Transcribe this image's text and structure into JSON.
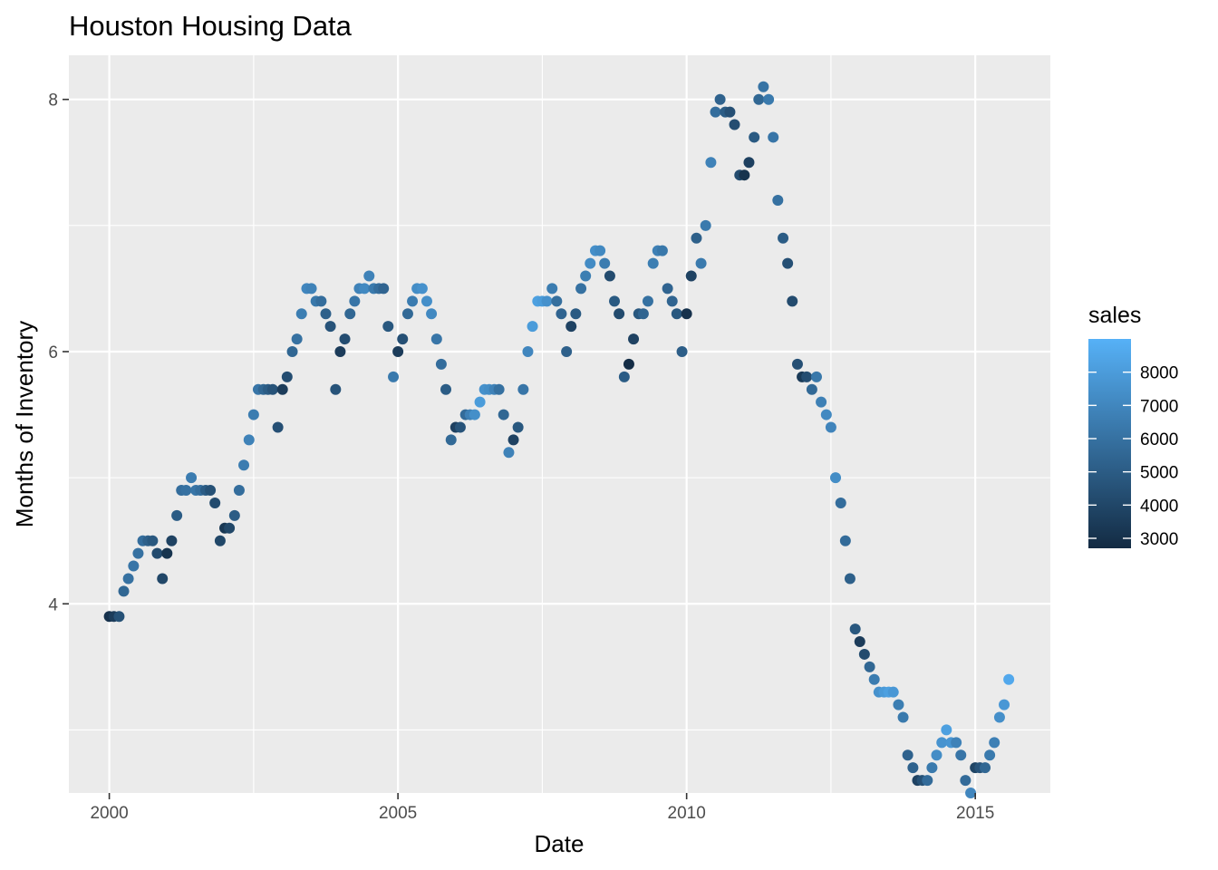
{
  "chart_data": {
    "type": "scatter",
    "title": "Houston Housing Data",
    "xlabel": "Date",
    "ylabel": "Months of Inventory",
    "xlim": [
      1999.3,
      2016.3
    ],
    "ylim": [
      2.5,
      8.35
    ],
    "x_ticks": [
      2000,
      2005,
      2010,
      2015
    ],
    "x_tick_labels": [
      "2000",
      "2005",
      "2010",
      "2015"
    ],
    "y_ticks": [
      4,
      6,
      8
    ],
    "y_tick_labels": [
      "4",
      "6",
      "8"
    ],
    "grid": true,
    "legend": {
      "title": "sales",
      "placement": "right",
      "range": [
        2700,
        9000
      ],
      "ticks": [
        3000,
        4000,
        5000,
        6000,
        7000,
        8000
      ],
      "tick_labels": [
        "3000",
        "4000",
        "5000",
        "6000",
        "7000",
        "8000"
      ],
      "color_low": "#132B43",
      "color_high": "#56B1F7"
    },
    "colors": {
      "panel": "#EBEBEB",
      "grid": "#FFFFFF",
      "low": "#132B43",
      "high": "#56B1F7"
    },
    "points": [
      {
        "x": 2000.0,
        "y": 3.9,
        "sales": 3000
      },
      {
        "x": 2000.08,
        "y": 3.9,
        "sales": 3500
      },
      {
        "x": 2000.17,
        "y": 3.9,
        "sales": 4500
      },
      {
        "x": 2000.25,
        "y": 4.1,
        "sales": 5500
      },
      {
        "x": 2000.33,
        "y": 4.2,
        "sales": 6000
      },
      {
        "x": 2000.42,
        "y": 4.3,
        "sales": 6200
      },
      {
        "x": 2000.5,
        "y": 4.4,
        "sales": 6000
      },
      {
        "x": 2000.58,
        "y": 4.5,
        "sales": 5800
      },
      {
        "x": 2000.67,
        "y": 4.5,
        "sales": 5200
      },
      {
        "x": 2000.75,
        "y": 4.5,
        "sales": 4800
      },
      {
        "x": 2000.83,
        "y": 4.4,
        "sales": 4200
      },
      {
        "x": 2000.92,
        "y": 4.2,
        "sales": 4000
      },
      {
        "x": 2001.0,
        "y": 4.4,
        "sales": 3100
      },
      {
        "x": 2001.08,
        "y": 4.5,
        "sales": 3800
      },
      {
        "x": 2001.17,
        "y": 4.7,
        "sales": 5000
      },
      {
        "x": 2001.25,
        "y": 4.9,
        "sales": 5800
      },
      {
        "x": 2001.33,
        "y": 4.9,
        "sales": 6000
      },
      {
        "x": 2001.42,
        "y": 5.0,
        "sales": 6500
      },
      {
        "x": 2001.5,
        "y": 4.9,
        "sales": 6200
      },
      {
        "x": 2001.58,
        "y": 4.9,
        "sales": 5800
      },
      {
        "x": 2001.67,
        "y": 4.9,
        "sales": 5000
      },
      {
        "x": 2001.75,
        "y": 4.9,
        "sales": 4500
      },
      {
        "x": 2001.83,
        "y": 4.8,
        "sales": 4200
      },
      {
        "x": 2001.92,
        "y": 4.5,
        "sales": 4000
      },
      {
        "x": 2002.0,
        "y": 4.6,
        "sales": 3300
      },
      {
        "x": 2002.08,
        "y": 4.6,
        "sales": 4000
      },
      {
        "x": 2002.17,
        "y": 4.7,
        "sales": 5000
      },
      {
        "x": 2002.25,
        "y": 4.9,
        "sales": 5800
      },
      {
        "x": 2002.33,
        "y": 5.1,
        "sales": 6500
      },
      {
        "x": 2002.42,
        "y": 5.3,
        "sales": 6800
      },
      {
        "x": 2002.5,
        "y": 5.5,
        "sales": 6500
      },
      {
        "x": 2002.58,
        "y": 5.7,
        "sales": 6200
      },
      {
        "x": 2002.67,
        "y": 5.7,
        "sales": 5500
      },
      {
        "x": 2002.75,
        "y": 5.7,
        "sales": 5000
      },
      {
        "x": 2002.83,
        "y": 5.7,
        "sales": 4600
      },
      {
        "x": 2002.92,
        "y": 5.4,
        "sales": 4400
      },
      {
        "x": 2003.0,
        "y": 5.7,
        "sales": 3500
      },
      {
        "x": 2003.08,
        "y": 5.8,
        "sales": 4300
      },
      {
        "x": 2003.17,
        "y": 6.0,
        "sales": 5500
      },
      {
        "x": 2003.25,
        "y": 6.1,
        "sales": 6000
      },
      {
        "x": 2003.33,
        "y": 6.3,
        "sales": 6600
      },
      {
        "x": 2003.42,
        "y": 6.5,
        "sales": 7000
      },
      {
        "x": 2003.5,
        "y": 6.5,
        "sales": 6800
      },
      {
        "x": 2003.58,
        "y": 6.4,
        "sales": 6300
      },
      {
        "x": 2003.67,
        "y": 6.4,
        "sales": 5800
      },
      {
        "x": 2003.75,
        "y": 6.3,
        "sales": 5200
      },
      {
        "x": 2003.83,
        "y": 6.2,
        "sales": 4600
      },
      {
        "x": 2003.92,
        "y": 5.7,
        "sales": 4600
      },
      {
        "x": 2004.0,
        "y": 6.0,
        "sales": 3500
      },
      {
        "x": 2004.08,
        "y": 6.1,
        "sales": 4300
      },
      {
        "x": 2004.17,
        "y": 6.3,
        "sales": 5500
      },
      {
        "x": 2004.25,
        "y": 6.4,
        "sales": 6200
      },
      {
        "x": 2004.33,
        "y": 6.5,
        "sales": 6800
      },
      {
        "x": 2004.42,
        "y": 6.5,
        "sales": 7100
      },
      {
        "x": 2004.5,
        "y": 6.6,
        "sales": 6800
      },
      {
        "x": 2004.58,
        "y": 6.5,
        "sales": 6400
      },
      {
        "x": 2004.67,
        "y": 6.5,
        "sales": 5800
      },
      {
        "x": 2004.75,
        "y": 6.5,
        "sales": 5400
      },
      {
        "x": 2004.83,
        "y": 6.2,
        "sales": 4800
      },
      {
        "x": 2004.92,
        "y": 5.8,
        "sales": 6400
      },
      {
        "x": 2005.0,
        "y": 6.0,
        "sales": 3500
      },
      {
        "x": 2005.08,
        "y": 6.1,
        "sales": 4400
      },
      {
        "x": 2005.17,
        "y": 6.3,
        "sales": 5600
      },
      {
        "x": 2005.25,
        "y": 6.4,
        "sales": 6500
      },
      {
        "x": 2005.33,
        "y": 6.5,
        "sales": 7300
      },
      {
        "x": 2005.42,
        "y": 6.5,
        "sales": 7500
      },
      {
        "x": 2005.5,
        "y": 6.4,
        "sales": 7400
      },
      {
        "x": 2005.58,
        "y": 6.3,
        "sales": 7100
      },
      {
        "x": 2005.67,
        "y": 6.1,
        "sales": 6200
      },
      {
        "x": 2005.75,
        "y": 5.9,
        "sales": 5800
      },
      {
        "x": 2005.83,
        "y": 5.7,
        "sales": 5000
      },
      {
        "x": 2005.92,
        "y": 5.3,
        "sales": 5600
      },
      {
        "x": 2006.0,
        "y": 5.4,
        "sales": 3700
      },
      {
        "x": 2006.08,
        "y": 5.4,
        "sales": 4600
      },
      {
        "x": 2006.17,
        "y": 5.5,
        "sales": 5700
      },
      {
        "x": 2006.25,
        "y": 5.5,
        "sales": 6700
      },
      {
        "x": 2006.33,
        "y": 5.5,
        "sales": 7400
      },
      {
        "x": 2006.42,
        "y": 5.6,
        "sales": 8000
      },
      {
        "x": 2006.5,
        "y": 5.7,
        "sales": 7500
      },
      {
        "x": 2006.58,
        "y": 5.7,
        "sales": 7300
      },
      {
        "x": 2006.67,
        "y": 5.7,
        "sales": 6800
      },
      {
        "x": 2006.75,
        "y": 5.7,
        "sales": 6000
      },
      {
        "x": 2006.83,
        "y": 5.5,
        "sales": 5500
      },
      {
        "x": 2006.92,
        "y": 5.2,
        "sales": 6800
      },
      {
        "x": 2007.0,
        "y": 5.3,
        "sales": 3800
      },
      {
        "x": 2007.08,
        "y": 5.4,
        "sales": 4800
      },
      {
        "x": 2007.17,
        "y": 5.7,
        "sales": 6200
      },
      {
        "x": 2007.25,
        "y": 6.0,
        "sales": 7000
      },
      {
        "x": 2007.33,
        "y": 6.2,
        "sales": 8000
      },
      {
        "x": 2007.42,
        "y": 6.4,
        "sales": 8200
      },
      {
        "x": 2007.5,
        "y": 6.4,
        "sales": 8000
      },
      {
        "x": 2007.58,
        "y": 6.4,
        "sales": 7500
      },
      {
        "x": 2007.67,
        "y": 6.5,
        "sales": 6500
      },
      {
        "x": 2007.75,
        "y": 6.4,
        "sales": 5900
      },
      {
        "x": 2007.83,
        "y": 6.3,
        "sales": 5400
      },
      {
        "x": 2007.92,
        "y": 6.0,
        "sales": 5200
      },
      {
        "x": 2008.0,
        "y": 6.2,
        "sales": 3800
      },
      {
        "x": 2008.08,
        "y": 6.3,
        "sales": 4900
      },
      {
        "x": 2008.17,
        "y": 6.5,
        "sales": 6000
      },
      {
        "x": 2008.25,
        "y": 6.6,
        "sales": 6600
      },
      {
        "x": 2008.33,
        "y": 6.7,
        "sales": 7200
      },
      {
        "x": 2008.42,
        "y": 6.8,
        "sales": 7400
      },
      {
        "x": 2008.5,
        "y": 6.8,
        "sales": 7100
      },
      {
        "x": 2008.58,
        "y": 6.7,
        "sales": 6500
      },
      {
        "x": 2008.67,
        "y": 6.6,
        "sales": 4200
      },
      {
        "x": 2008.75,
        "y": 6.4,
        "sales": 4900
      },
      {
        "x": 2008.83,
        "y": 6.3,
        "sales": 4200
      },
      {
        "x": 2008.92,
        "y": 5.8,
        "sales": 5000
      },
      {
        "x": 2009.0,
        "y": 5.9,
        "sales": 2800
      },
      {
        "x": 2009.08,
        "y": 6.1,
        "sales": 3800
      },
      {
        "x": 2009.17,
        "y": 6.3,
        "sales": 4800
      },
      {
        "x": 2009.25,
        "y": 6.3,
        "sales": 5400
      },
      {
        "x": 2009.33,
        "y": 6.4,
        "sales": 6000
      },
      {
        "x": 2009.42,
        "y": 6.7,
        "sales": 6600
      },
      {
        "x": 2009.5,
        "y": 6.8,
        "sales": 6700
      },
      {
        "x": 2009.58,
        "y": 6.8,
        "sales": 6300
      },
      {
        "x": 2009.67,
        "y": 6.5,
        "sales": 5400
      },
      {
        "x": 2009.75,
        "y": 6.4,
        "sales": 5400
      },
      {
        "x": 2009.83,
        "y": 6.3,
        "sales": 4800
      },
      {
        "x": 2009.92,
        "y": 6.0,
        "sales": 5100
      },
      {
        "x": 2010.0,
        "y": 6.3,
        "sales": 3000
      },
      {
        "x": 2010.08,
        "y": 6.6,
        "sales": 3800
      },
      {
        "x": 2010.17,
        "y": 6.9,
        "sales": 5200
      },
      {
        "x": 2010.25,
        "y": 6.7,
        "sales": 6400
      },
      {
        "x": 2010.33,
        "y": 7.0,
        "sales": 6400
      },
      {
        "x": 2010.42,
        "y": 7.5,
        "sales": 6800
      },
      {
        "x": 2010.5,
        "y": 7.9,
        "sales": 5800
      },
      {
        "x": 2010.58,
        "y": 8.0,
        "sales": 5300
      },
      {
        "x": 2010.67,
        "y": 7.9,
        "sales": 5000
      },
      {
        "x": 2010.75,
        "y": 7.9,
        "sales": 4400
      },
      {
        "x": 2010.83,
        "y": 7.8,
        "sales": 4300
      },
      {
        "x": 2010.92,
        "y": 7.4,
        "sales": 4200
      },
      {
        "x": 2011.0,
        "y": 7.4,
        "sales": 3100
      },
      {
        "x": 2011.08,
        "y": 7.5,
        "sales": 3700
      },
      {
        "x": 2011.17,
        "y": 7.7,
        "sales": 4900
      },
      {
        "x": 2011.25,
        "y": 8.0,
        "sales": 5500
      },
      {
        "x": 2011.33,
        "y": 8.1,
        "sales": 6100
      },
      {
        "x": 2011.42,
        "y": 8.0,
        "sales": 6400
      },
      {
        "x": 2011.5,
        "y": 7.7,
        "sales": 6200
      },
      {
        "x": 2011.58,
        "y": 7.2,
        "sales": 6000
      },
      {
        "x": 2011.67,
        "y": 6.9,
        "sales": 5000
      },
      {
        "x": 2011.75,
        "y": 6.7,
        "sales": 4400
      },
      {
        "x": 2011.83,
        "y": 6.4,
        "sales": 4200
      },
      {
        "x": 2011.92,
        "y": 5.9,
        "sales": 4400
      },
      {
        "x": 2012.0,
        "y": 5.8,
        "sales": 3400
      },
      {
        "x": 2012.08,
        "y": 5.8,
        "sales": 4300
      },
      {
        "x": 2012.17,
        "y": 5.7,
        "sales": 5600
      },
      {
        "x": 2012.25,
        "y": 5.8,
        "sales": 6300
      },
      {
        "x": 2012.33,
        "y": 5.6,
        "sales": 6700
      },
      {
        "x": 2012.42,
        "y": 5.5,
        "sales": 7100
      },
      {
        "x": 2012.5,
        "y": 5.4,
        "sales": 6900
      },
      {
        "x": 2012.58,
        "y": 5.0,
        "sales": 7300
      },
      {
        "x": 2012.67,
        "y": 4.8,
        "sales": 5800
      },
      {
        "x": 2012.75,
        "y": 4.5,
        "sales": 5700
      },
      {
        "x": 2012.83,
        "y": 4.2,
        "sales": 5200
      },
      {
        "x": 2012.92,
        "y": 3.8,
        "sales": 4800
      },
      {
        "x": 2013.0,
        "y": 3.7,
        "sales": 3500
      },
      {
        "x": 2013.08,
        "y": 3.6,
        "sales": 4200
      },
      {
        "x": 2013.17,
        "y": 3.5,
        "sales": 5500
      },
      {
        "x": 2013.25,
        "y": 3.4,
        "sales": 6500
      },
      {
        "x": 2013.33,
        "y": 3.3,
        "sales": 7500
      },
      {
        "x": 2013.42,
        "y": 3.3,
        "sales": 7900
      },
      {
        "x": 2013.5,
        "y": 3.3,
        "sales": 8200
      },
      {
        "x": 2013.58,
        "y": 3.3,
        "sales": 7800
      },
      {
        "x": 2013.67,
        "y": 3.2,
        "sales": 6600
      },
      {
        "x": 2013.75,
        "y": 3.1,
        "sales": 6400
      },
      {
        "x": 2013.83,
        "y": 2.8,
        "sales": 5300
      },
      {
        "x": 2013.92,
        "y": 2.7,
        "sales": 5300
      },
      {
        "x": 2014.0,
        "y": 2.6,
        "sales": 3800
      },
      {
        "x": 2014.08,
        "y": 2.6,
        "sales": 4500
      },
      {
        "x": 2014.17,
        "y": 2.6,
        "sales": 5700
      },
      {
        "x": 2014.25,
        "y": 2.7,
        "sales": 6400
      },
      {
        "x": 2014.33,
        "y": 2.8,
        "sales": 7300
      },
      {
        "x": 2014.42,
        "y": 2.9,
        "sales": 7600
      },
      {
        "x": 2014.5,
        "y": 3.0,
        "sales": 8200
      },
      {
        "x": 2014.58,
        "y": 2.9,
        "sales": 7700
      },
      {
        "x": 2014.67,
        "y": 2.9,
        "sales": 6800
      },
      {
        "x": 2014.75,
        "y": 2.8,
        "sales": 6200
      },
      {
        "x": 2014.83,
        "y": 2.6,
        "sales": 5700
      },
      {
        "x": 2014.92,
        "y": 2.5,
        "sales": 7000
      },
      {
        "x": 2015.0,
        "y": 2.7,
        "sales": 3900
      },
      {
        "x": 2015.08,
        "y": 2.7,
        "sales": 4600
      },
      {
        "x": 2015.17,
        "y": 2.7,
        "sales": 5500
      },
      {
        "x": 2015.25,
        "y": 2.8,
        "sales": 6400
      },
      {
        "x": 2015.33,
        "y": 2.9,
        "sales": 6700
      },
      {
        "x": 2015.42,
        "y": 3.1,
        "sales": 7400
      },
      {
        "x": 2015.5,
        "y": 3.2,
        "sales": 7800
      },
      {
        "x": 2015.58,
        "y": 3.4,
        "sales": 8600
      }
    ]
  }
}
